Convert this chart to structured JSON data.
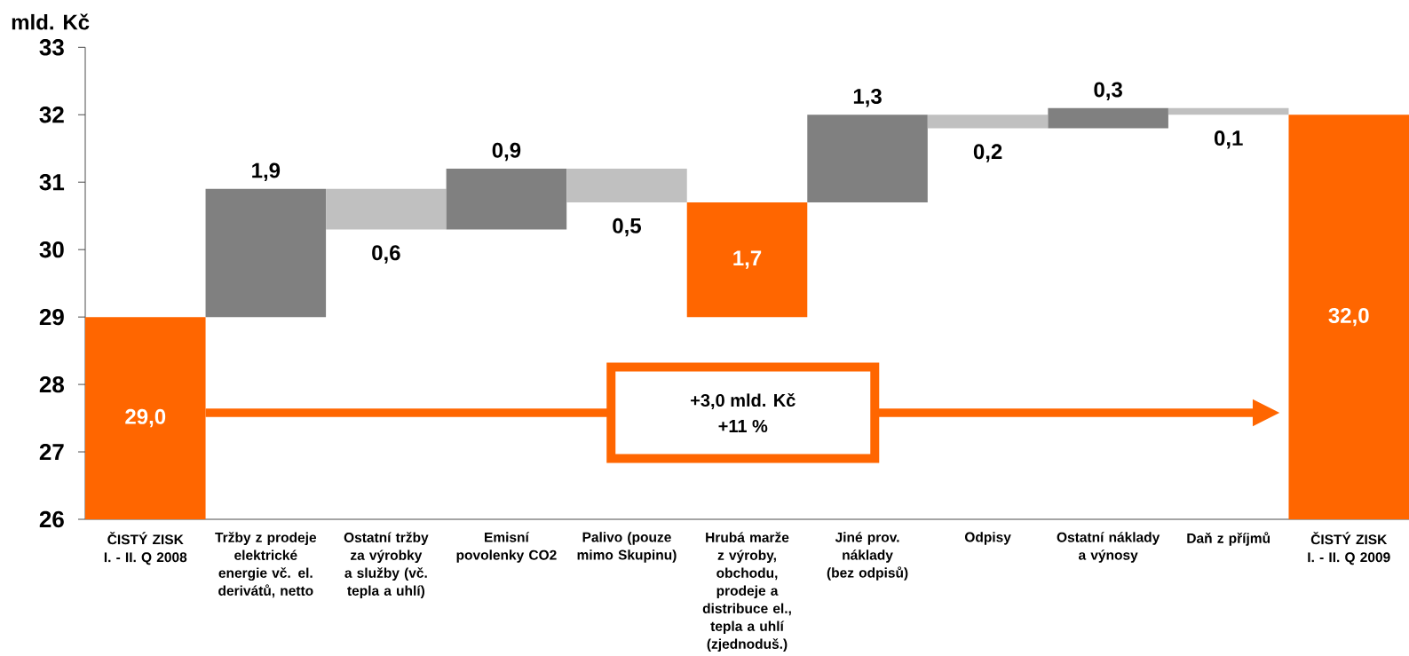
{
  "chart_data": {
    "type": "bar",
    "ylabel": "mld. Kč",
    "categories": [
      "ČISTÝ ZISK I. - II. Q 2008",
      "Tržby z prodeje elektrické energie vč. el. derivátů, netto",
      "Ostatní tržby za výrobky a služby (vč. tepla a uhlí)",
      "Emisní povolenky CO2",
      "Palivo (pouze mimo Skupinu)",
      "Hrubá marže z výroby, obchodu, prodeje a distribuce el., tepla a uhlí (zjednoduš.)",
      "Jiné prov. náklady (bez odpisů)",
      "Odpisy",
      "Ostatní náklady a výnosy",
      "Daň z příjmů",
      "ČISTÝ ZISK I. - II. Q 2009"
    ],
    "values": [
      29.0,
      1.9,
      -0.6,
      0.9,
      -0.5,
      1.7,
      1.3,
      -0.2,
      0.3,
      -0.1,
      32.0
    ],
    "base": [
      null,
      29.0,
      30.9,
      30.3,
      31.2,
      29.0,
      30.7,
      32.0,
      31.8,
      32.1,
      null
    ],
    "colors": [
      "#ff6600",
      "#808080",
      "#c0c0c0",
      "#808080",
      "#c0c0c0",
      "#ff6600",
      "#808080",
      "#c0c0c0",
      "#808080",
      "#c0c0c0",
      "#ff6600"
    ],
    "value_labels": [
      "29,0",
      "1,9",
      "0,6",
      "0,9",
      "0,5",
      "1,7",
      "1,3",
      "0,2",
      "0,3",
      "0,1",
      "32,0"
    ],
    "ylim": [
      26,
      33
    ],
    "yticks": [
      26,
      27,
      28,
      29,
      30,
      31,
      32,
      33
    ],
    "annotations": [
      "+3,0 mld. Kč",
      "+11 %"
    ]
  }
}
